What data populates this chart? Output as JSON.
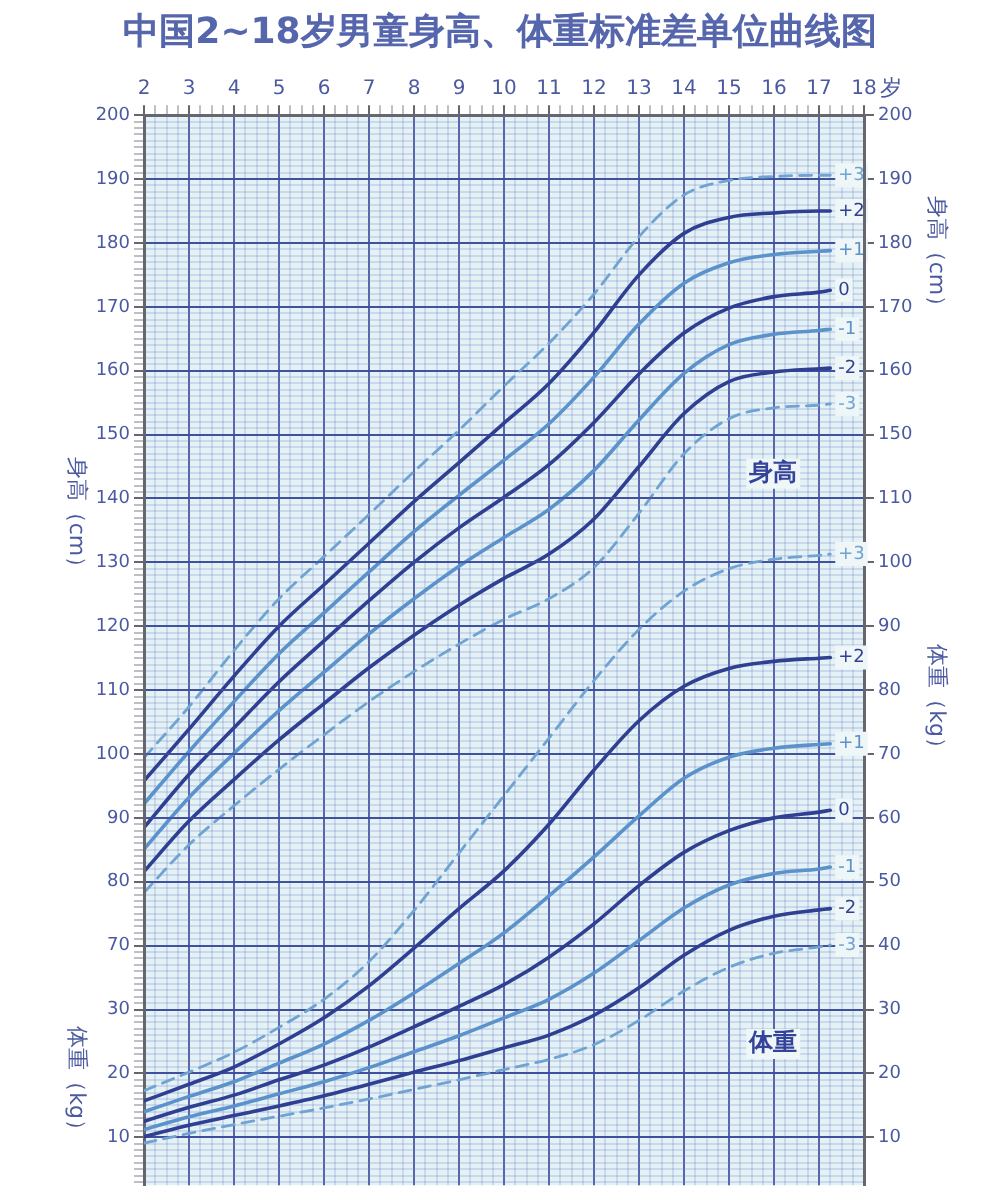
{
  "chart_data": [
    {
      "type": "line",
      "title": "中国2~18岁男童身高、体重标准差单位曲线图",
      "xlabel": "岁",
      "ylabel": "身高（cm）",
      "y2label": "身高（cm）",
      "x": [
        2,
        3,
        4,
        5,
        6,
        7,
        8,
        9,
        10,
        11,
        12,
        13,
        14,
        15,
        16,
        17,
        17.25
      ],
      "xlim": [
        2,
        18
      ],
      "xticks": [
        2,
        {
          "value": 2.25,
          "label": null
        },
        {
          "value": 2.5,
          "label": null
        },
        {
          "value": 2.75,
          "label": null
        },
        3,
        {
          "value": 3.25,
          "label": null
        },
        {
          "value": 3.5,
          "label": null
        },
        {
          "value": 3.75,
          "label": null
        },
        4,
        {
          "value": 4.25,
          "label": null
        },
        {
          "value": 4.5,
          "label": null
        },
        {
          "value": 4.75,
          "label": null
        },
        5,
        {
          "value": 5.25,
          "label": null
        },
        {
          "value": 5.5,
          "label": null
        },
        {
          "value": 5.75,
          "label": null
        },
        6,
        {
          "value": 6.25,
          "label": null
        },
        {
          "value": 6.5,
          "label": null
        },
        {
          "value": 6.75,
          "label": null
        },
        7,
        {
          "value": 7.25,
          "label": null
        },
        {
          "value": 7.5,
          "label": null
        },
        {
          "value": 7.75,
          "label": null
        },
        8,
        {
          "value": 8.25,
          "label": null
        },
        {
          "value": 8.5,
          "label": null
        },
        {
          "value": 8.75,
          "label": null
        },
        9,
        {
          "value": 9.25,
          "label": null
        },
        {
          "value": 9.5,
          "label": null
        },
        {
          "value": 9.75,
          "label": null
        },
        10,
        {
          "value": 10.25,
          "label": null
        },
        {
          "value": 10.5,
          "label": null
        },
        {
          "value": 10.75,
          "label": null
        },
        11,
        {
          "value": 11.25,
          "label": null
        },
        {
          "value": 11.5,
          "label": null
        },
        {
          "value": 11.75,
          "label": null
        },
        12,
        {
          "value": 12.25,
          "label": null
        },
        {
          "value": 12.5,
          "label": null
        },
        {
          "value": 12.75,
          "label": null
        },
        13,
        {
          "value": 13.25,
          "label": null
        },
        {
          "value": 13.5,
          "label": null
        },
        {
          "value": 13.75,
          "label": null
        },
        14,
        {
          "value": 14.25,
          "label": null
        },
        {
          "value": 14.5,
          "label": null
        },
        {
          "value": 14.75,
          "label": null
        },
        15,
        {
          "value": 15.25,
          "label": null
        },
        {
          "value": 15.5,
          "label": null
        },
        {
          "value": 15.75,
          "label": null
        },
        16,
        {
          "value": 16.25,
          "label": null
        },
        {
          "value": 16.5,
          "label": null
        },
        {
          "value": 16.75,
          "label": null
        },
        17,
        {
          "value": 17.25,
          "label": null
        },
        {
          "value": 17.5,
          "label": null
        },
        {
          "value": 17.75,
          "label": null
        },
        18
      ],
      "ylim": [
        32.5,
        200
      ],
      "yticks": [
        {
          "value": 33,
          "label": null
        },
        {
          "value": 34,
          "label": null
        },
        {
          "value": 35,
          "label": null
        },
        {
          "value": 36,
          "label": null
        },
        {
          "value": 37,
          "label": null
        },
        {
          "value": 38,
          "label": null
        },
        {
          "value": 39,
          "label": null
        },
        {
          "value": 40,
          "label": null
        },
        {
          "value": 41,
          "label": null
        },
        {
          "value": 42,
          "label": null
        },
        {
          "value": 43,
          "label": null
        },
        {
          "value": 44,
          "label": null
        },
        {
          "value": 45,
          "label": null
        },
        {
          "value": 46,
          "label": null
        },
        {
          "value": 47,
          "label": null
        },
        {
          "value": 48,
          "label": null
        },
        {
          "value": 49,
          "label": null
        },
        {
          "value": 50,
          "label": null
        },
        {
          "value": 51,
          "label": null
        },
        {
          "value": 52,
          "label": null
        },
        {
          "value": 53,
          "label": null
        },
        {
          "value": 54,
          "label": null
        },
        {
          "value": 55,
          "label": null
        },
        {
          "value": 56,
          "label": null
        },
        {
          "value": 57,
          "label": null
        },
        {
          "value": 58,
          "label": null
        },
        {
          "value": 59,
          "label": null
        },
        {
          "value": 60,
          "label": null
        },
        {
          "value": 61,
          "label": null
        },
        {
          "value": 62,
          "label": null
        },
        {
          "value": 63,
          "label": null
        },
        {
          "value": 64,
          "label": null
        },
        {
          "value": 65,
          "label": null
        },
        {
          "value": 66,
          "label": null
        },
        {
          "value": 67,
          "label": null
        },
        {
          "value": 68,
          "label": null
        },
        {
          "value": 69,
          "label": null
        },
        70,
        {
          "value": 71,
          "label": null
        },
        {
          "value": 72,
          "label": null
        },
        {
          "value": 73,
          "label": null
        },
        {
          "value": 74,
          "label": null
        },
        {
          "value": 75,
          "label": null
        },
        {
          "value": 76,
          "label": null
        },
        {
          "value": 77,
          "label": null
        },
        {
          "value": 78,
          "label": null
        },
        {
          "value": 79,
          "label": null
        },
        80,
        {
          "value": 81,
          "label": null
        },
        {
          "value": 82,
          "label": null
        },
        {
          "value": 83,
          "label": null
        },
        {
          "value": 84,
          "label": null
        },
        {
          "value": 85,
          "label": null
        },
        {
          "value": 86,
          "label": null
        },
        {
          "value": 87,
          "label": null
        },
        {
          "value": 88,
          "label": null
        },
        {
          "value": 89,
          "label": null
        },
        90,
        {
          "value": 91,
          "label": null
        },
        {
          "value": 92,
          "label": null
        },
        {
          "value": 93,
          "label": null
        },
        {
          "value": 94,
          "label": null
        },
        {
          "value": 95,
          "label": null
        },
        {
          "value": 96,
          "label": null
        },
        {
          "value": 97,
          "label": null
        },
        {
          "value": 98,
          "label": null
        },
        {
          "value": 99,
          "label": null
        },
        100,
        {
          "value": 101,
          "label": null
        },
        {
          "value": 102,
          "label": null
        },
        {
          "value": 103,
          "label": null
        },
        {
          "value": 104,
          "label": null
        },
        {
          "value": 105,
          "label": null
        },
        {
          "value": 106,
          "label": null
        },
        {
          "value": 107,
          "label": null
        },
        {
          "value": 108,
          "label": null
        },
        {
          "value": 109,
          "label": null
        },
        110,
        {
          "value": 111,
          "label": null
        },
        {
          "value": 112,
          "label": null
        },
        {
          "value": 113,
          "label": null
        },
        {
          "value": 114,
          "label": null
        },
        {
          "value": 115,
          "label": null
        },
        {
          "value": 116,
          "label": null
        },
        {
          "value": 117,
          "label": null
        },
        {
          "value": 118,
          "label": null
        },
        {
          "value": 119,
          "label": null
        },
        120,
        {
          "value": 121,
          "label": null
        },
        {
          "value": 122,
          "label": null
        },
        {
          "value": 123,
          "label": null
        },
        {
          "value": 124,
          "label": null
        },
        {
          "value": 125,
          "label": null
        },
        {
          "value": 126,
          "label": null
        },
        {
          "value": 127,
          "label": null
        },
        {
          "value": 128,
          "label": null
        },
        {
          "value": 129,
          "label": null
        },
        130,
        {
          "value": 131,
          "label": null
        },
        {
          "value": 132,
          "label": null
        },
        {
          "value": 133,
          "label": null
        },
        {
          "value": 134,
          "label": null
        },
        {
          "value": 135,
          "label": null
        },
        {
          "value": 136,
          "label": null
        },
        {
          "value": 137,
          "label": null
        },
        {
          "value": 138,
          "label": null
        },
        {
          "value": 139,
          "label": null
        },
        140,
        {
          "value": 141,
          "label": null
        },
        {
          "value": 142,
          "label": null
        },
        {
          "value": 143,
          "label": null
        },
        {
          "value": 144,
          "label": null
        },
        {
          "value": 145,
          "label": null
        },
        {
          "value": 146,
          "label": null
        },
        {
          "value": 147,
          "label": null
        },
        {
          "value": 148,
          "label": null
        },
        {
          "value": 149,
          "label": null
        },
        150,
        {
          "value": 151,
          "label": null
        },
        {
          "value": 152,
          "label": null
        },
        {
          "value": 153,
          "label": null
        },
        {
          "value": 154,
          "label": null
        },
        {
          "value": 155,
          "label": null
        },
        {
          "value": 156,
          "label": null
        },
        {
          "value": 157,
          "label": null
        },
        {
          "value": 158,
          "label": null
        },
        {
          "value": 159,
          "label": null
        },
        160,
        {
          "value": 161,
          "label": null
        },
        {
          "value": 162,
          "label": null
        },
        {
          "value": 163,
          "label": null
        },
        {
          "value": 164,
          "label": null
        },
        {
          "value": 165,
          "label": null
        },
        {
          "value": 166,
          "label": null
        },
        {
          "value": 167,
          "label": null
        },
        {
          "value": 168,
          "label": null
        },
        {
          "value": 169,
          "label": null
        },
        170,
        {
          "value": 171,
          "label": null
        },
        {
          "value": 172,
          "label": null
        },
        {
          "value": 173,
          "label": null
        },
        {
          "value": 174,
          "label": null
        },
        {
          "value": 175,
          "label": null
        },
        {
          "value": 176,
          "label": null
        },
        {
          "value": 177,
          "label": null
        },
        {
          "value": 178,
          "label": null
        },
        {
          "value": 179,
          "label": null
        },
        180,
        {
          "value": 181,
          "label": null
        },
        {
          "value": 182,
          "label": null
        },
        {
          "value": 183,
          "label": null
        },
        {
          "value": 184,
          "label": null
        },
        {
          "value": 185,
          "label": null
        },
        {
          "value": 186,
          "label": null
        },
        {
          "value": 187,
          "label": null
        },
        {
          "value": 188,
          "label": null
        },
        {
          "value": 189,
          "label": null
        },
        190,
        {
          "value": 191,
          "label": null
        },
        {
          "value": 192,
          "label": null
        },
        {
          "value": 193,
          "label": null
        },
        {
          "value": 194,
          "label": null
        },
        {
          "value": 195,
          "label": null
        },
        {
          "value": 196,
          "label": null
        },
        {
          "value": 197,
          "label": null
        },
        {
          "value": 198,
          "label": null
        },
        {
          "value": 199,
          "label": null
        },
        200
      ],
      "y2lim": [
        32.5,
        200
      ],
      "y2ticks": [
        150,
        160,
        170,
        180,
        190,
        200
      ],
      "series": [
        {
          "name": "+3",
          "color": "#6fa3d2",
          "line_style": "dashed",
          "values": [
            99.4,
            107.4,
            116.2,
            124.3,
            130.9,
            137.5,
            144.2,
            150.7,
            157.6,
            164.3,
            172,
            181,
            187.5,
            189.8,
            190.4,
            190.6,
            190.6
          ]
        },
        {
          "name": "+2",
          "color": "#2f3f91",
          "line_style": "solid",
          "values": [
            95.8,
            103.9,
            112.2,
            120,
            126.5,
            133,
            139.5,
            145.6,
            151.8,
            158,
            166,
            175,
            181.5,
            184,
            184.7,
            185,
            185
          ]
        },
        {
          "name": "+1",
          "color": "#5b92cb",
          "line_style": "solid",
          "values": [
            92.2,
            100.4,
            108.2,
            115.7,
            122.1,
            128.5,
            134.8,
            140.5,
            146,
            151.7,
            159,
            167.3,
            173.7,
            176.9,
            178.2,
            178.7,
            178.8
          ]
        },
        {
          "name": "0",
          "color": "#2f3f91",
          "line_style": "solid",
          "values": [
            88.5,
            96.8,
            104.1,
            111.3,
            117.7,
            124,
            130,
            135.4,
            140.2,
            145.3,
            151.9,
            159.5,
            165.9,
            169.8,
            171.6,
            172.3,
            172.6
          ]
        },
        {
          "name": "-1",
          "color": "#5b92cb",
          "line_style": "solid",
          "values": [
            85.1,
            93.2,
            100.1,
            106.8,
            112.8,
            118.8,
            124.3,
            129.4,
            133.9,
            138.3,
            144.4,
            152.3,
            159.6,
            164.1,
            165.7,
            166.3,
            166.5
          ]
        },
        {
          "name": "-2",
          "color": "#2f3f91",
          "line_style": "solid",
          "values": [
            81.6,
            89.5,
            96,
            102.2,
            107.9,
            113.5,
            118.6,
            123.3,
            127.5,
            131.3,
            136.8,
            145,
            153.3,
            158.3,
            159.8,
            160.3,
            160.4
          ]
        },
        {
          "name": "-3",
          "color": "#6fa3d2",
          "line_style": "dashed",
          "values": [
            78.3,
            85.8,
            91.9,
            97.6,
            103,
            108.2,
            112.9,
            117.2,
            121.1,
            124.3,
            129.2,
            137.7,
            147,
            152.5,
            154.2,
            154.6,
            154.8
          ]
        }
      ],
      "annotations": [
        "身高"
      ],
      "grid": true,
      "legend": false,
      "marker": "none"
    },
    {
      "type": "line",
      "ylabel": "体重（kg）",
      "y2label": "体重（kg）",
      "x": [
        2,
        3,
        4,
        5,
        6,
        7,
        8,
        9,
        10,
        11,
        12,
        13,
        14,
        15,
        16,
        17,
        17.25
      ],
      "xlim": [
        2,
        18
      ],
      "ylim": [
        2.5,
        170
      ],
      "yticks": [
        10,
        20,
        30
      ],
      "y2lim": [
        2.5,
        170
      ],
      "y2ticks": [
        10,
        20,
        30,
        40,
        50,
        60,
        70,
        80,
        90,
        100,
        110
      ],
      "series": [
        {
          "name": "+3",
          "color": "#6fa3d2",
          "line_style": "dashed",
          "values": [
            17.3,
            20.2,
            23.3,
            27.2,
            31.6,
            37.5,
            45.5,
            54.5,
            63.5,
            72.5,
            81.5,
            89.5,
            95.5,
            99,
            100.5,
            101.1,
            101.3
          ]
        },
        {
          "name": "+2",
          "color": "#2f3f91",
          "line_style": "solid",
          "values": [
            15.7,
            18.3,
            21,
            24.6,
            28.7,
            33.7,
            39.6,
            45.8,
            51.7,
            59,
            67.5,
            75.2,
            80.6,
            83.4,
            84.5,
            85,
            85.1
          ]
        },
        {
          "name": "+1",
          "color": "#5b92cb",
          "line_style": "solid",
          "values": [
            14,
            16.4,
            18.7,
            21.6,
            24.6,
            28.3,
            32.6,
            37.2,
            42,
            47.8,
            53.9,
            60.3,
            66.2,
            69.5,
            70.9,
            71.5,
            71.6
          ]
        },
        {
          "name": "0",
          "color": "#2f3f91",
          "line_style": "solid",
          "values": [
            12.5,
            14.7,
            16.6,
            19,
            21.3,
            24.1,
            27.3,
            30.5,
            33.9,
            38.2,
            43.4,
            49.4,
            54.6,
            58,
            60,
            60.9,
            61.2
          ]
        },
        {
          "name": "-1",
          "color": "#5b92cb",
          "line_style": "solid",
          "values": [
            11.2,
            13.2,
            14.9,
            16.8,
            18.7,
            20.9,
            23.4,
            25.9,
            28.7,
            31.6,
            35.7,
            40.8,
            45.9,
            49.5,
            51.3,
            52,
            52.3
          ]
        },
        {
          "name": "-2",
          "color": "#2f3f91",
          "line_style": "solid",
          "values": [
            10.1,
            11.9,
            13.4,
            14.9,
            16.5,
            18.3,
            20.2,
            22,
            24,
            26,
            29.1,
            33.4,
            38.5,
            42.4,
            44.6,
            45.6,
            45.8
          ]
        },
        {
          "name": "-3",
          "color": "#6fa3d2",
          "line_style": "dashed",
          "values": [
            9.1,
            10.6,
            12,
            13.3,
            14.6,
            16,
            17.5,
            19,
            20.6,
            22.2,
            24.5,
            28.3,
            32.9,
            36.6,
            38.8,
            39.8,
            40.1
          ]
        }
      ],
      "annotations": [
        "体重"
      ],
      "grid": "y",
      "legend": false,
      "marker": "none",
      "tick_labels": "y"
    }
  ]
}
